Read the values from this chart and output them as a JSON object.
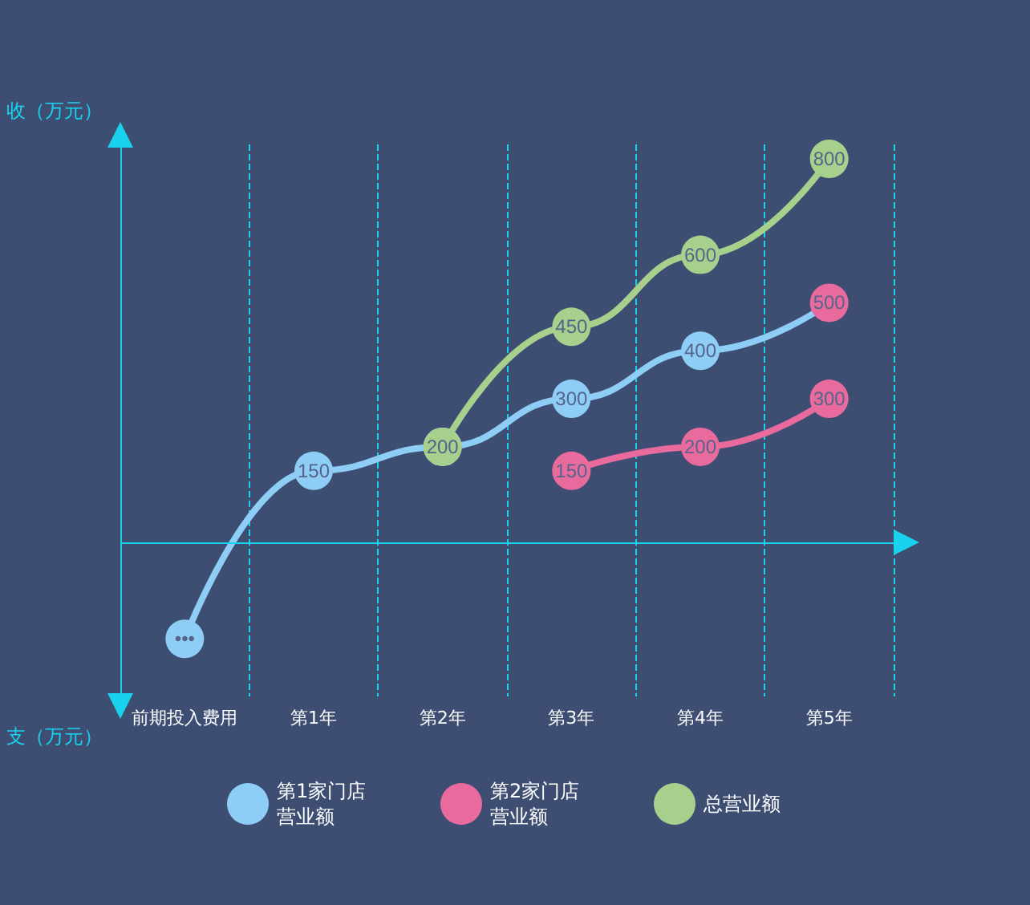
{
  "chart_data": {
    "type": "line",
    "ylabel": "收（万元）",
    "annotations": [
      "支（万元）"
    ],
    "ref_lines": [
      {
        "axis": "y",
        "value": 0,
        "color": "#19d3ee"
      }
    ],
    "categories": [
      "前期投入费用",
      "第1年",
      "第2年",
      "第3年",
      "第4年",
      "第5年"
    ],
    "series": [
      {
        "name": "第1家门店营业额",
        "color": "#8ecdf6",
        "colors": [
          "#8ecdf6",
          "#8ecdf6",
          "#8ecdf6",
          "#8ecdf6",
          "#8ecdf6",
          "#e96b9e"
        ],
        "values": [
          -200,
          150,
          200,
          300,
          400,
          500
        ],
        "value_labels": [
          "•••",
          "150",
          "200",
          "300",
          "400",
          "500"
        ]
      },
      {
        "name": "第2家门店营业额",
        "color": "#e96b9e",
        "values": [
          null,
          null,
          null,
          150,
          200,
          300
        ],
        "value_labels": [
          null,
          null,
          null,
          "150",
          "200",
          "300"
        ]
      },
      {
        "name": "总营业额",
        "color": "#a8d08d",
        "values": [
          null,
          null,
          200,
          450,
          600,
          800
        ],
        "value_labels": [
          null,
          null,
          null,
          "450",
          "600",
          "800"
        ]
      }
    ],
    "grid": "x",
    "legend": "bottom",
    "marker": "circle",
    "line_style": "solid"
  }
}
